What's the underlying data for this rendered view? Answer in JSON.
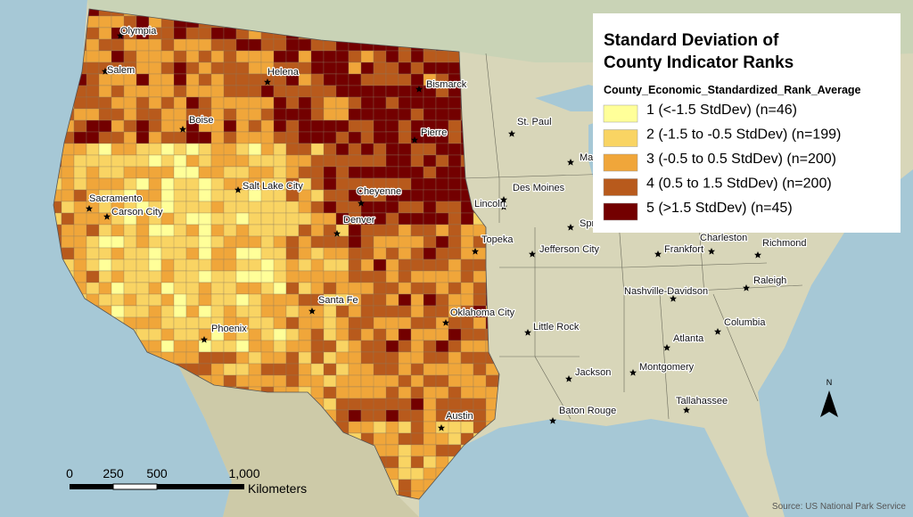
{
  "legend": {
    "title": [
      "Standard Deviation of",
      "County Indicator Ranks"
    ],
    "field": "County_Economic_Standardized_Rank_Average",
    "classes": [
      {
        "label": "1 (<-1.5 StdDev) (n=46)",
        "color": "#ffff99"
      },
      {
        "label": "2 (-1.5 to -0.5 StdDev) (n=199)",
        "color": "#f9d463"
      },
      {
        "label": "3 (-0.5 to 0.5 StdDev) (n=200)",
        "color": "#f0a63a"
      },
      {
        "label": "4 (0.5 to 1.5 StdDev) (n=200)",
        "color": "#b85a1c"
      },
      {
        "label": "5 (>1.5 StdDev) (n=45)",
        "color": "#730000"
      }
    ]
  },
  "cities": [
    "Olympia",
    "Salem",
    "Helena",
    "Bismarck",
    "Boise",
    "St. Paul",
    "Pierre",
    "Madison",
    "Salt Lake City",
    "Cheyenne",
    "Lincoln",
    "Des Moines",
    "Sacramento",
    "Carson City",
    "Springfield",
    "Denver",
    "Topeka",
    "Jefferson City",
    "Frankfort",
    "Charleston",
    "Richmond",
    "Nashville-Davidson",
    "Raleigh",
    "Santa Fe",
    "Oklahoma City",
    "Phoenix",
    "Little Rock",
    "Columbia",
    "Atlanta",
    "Montgomery",
    "Jackson",
    "Tallahassee",
    "Baton Rouge",
    "Austin"
  ],
  "scale_bar": {
    "ticks": [
      "0",
      "250",
      "500",
      "1,000"
    ],
    "unit": "Kilometers"
  },
  "north_arrow": "N",
  "source": "Source: US National Park Service"
}
